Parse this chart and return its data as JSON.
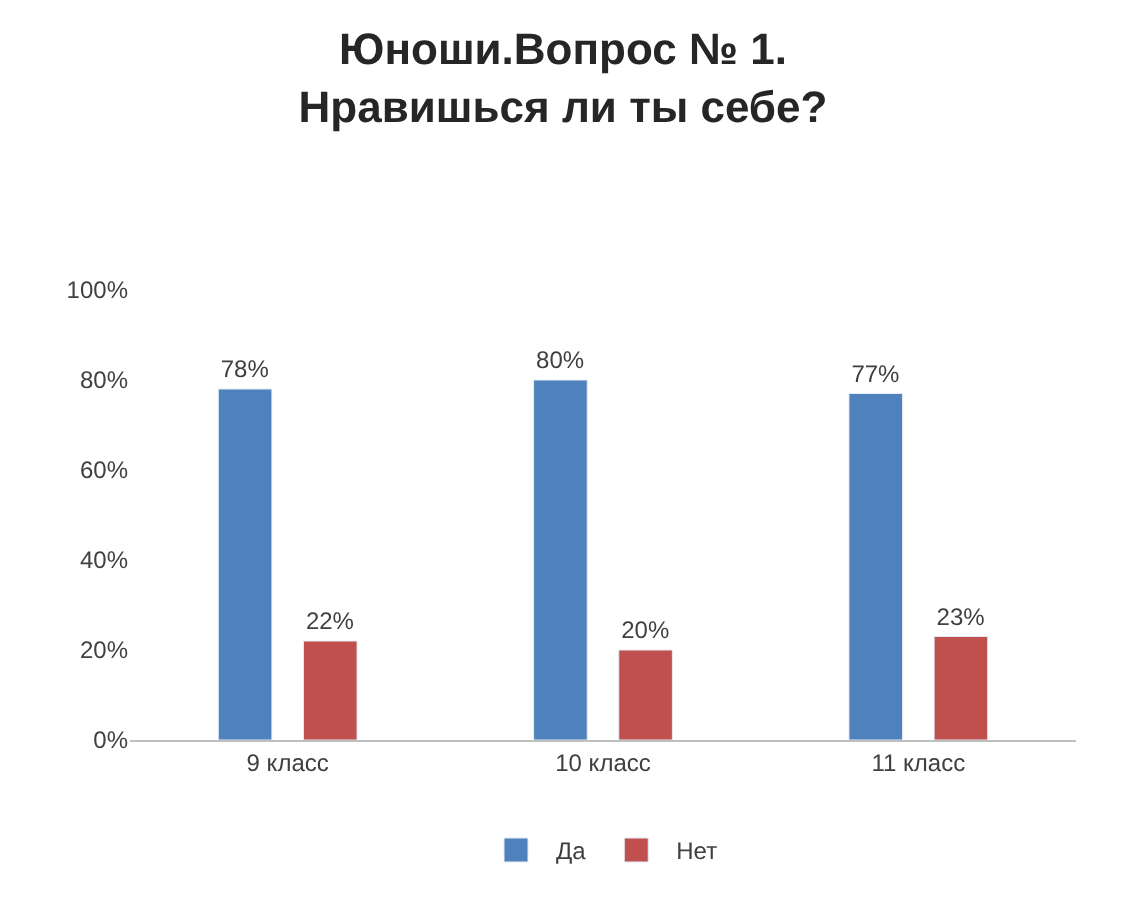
{
  "chart_data": {
    "type": "bar",
    "title": "Юноши.Вопрос № 1.\nНравишься ли ты себе?",
    "categories": [
      "9 класс",
      "10 класс",
      "11 класс"
    ],
    "series": [
      {
        "name": "Да",
        "color": "#4f81bd",
        "values": [
          78,
          80,
          77
        ],
        "value_labels": [
          "78%",
          "80%",
          "77%"
        ]
      },
      {
        "name": "Нет",
        "color": "#c0504d",
        "values": [
          22,
          20,
          23
        ],
        "value_labels": [
          "22%",
          "20%",
          "23%"
        ]
      }
    ],
    "ylim": [
      0,
      100
    ],
    "yticks": [
      {
        "value": 0,
        "label": "0%"
      },
      {
        "value": 20,
        "label": "20%"
      },
      {
        "value": 40,
        "label": "40%"
      },
      {
        "value": 60,
        "label": "60%"
      },
      {
        "value": 80,
        "label": "80%"
      },
      {
        "value": 100,
        "label": "100%"
      }
    ],
    "legend": "bottom"
  }
}
